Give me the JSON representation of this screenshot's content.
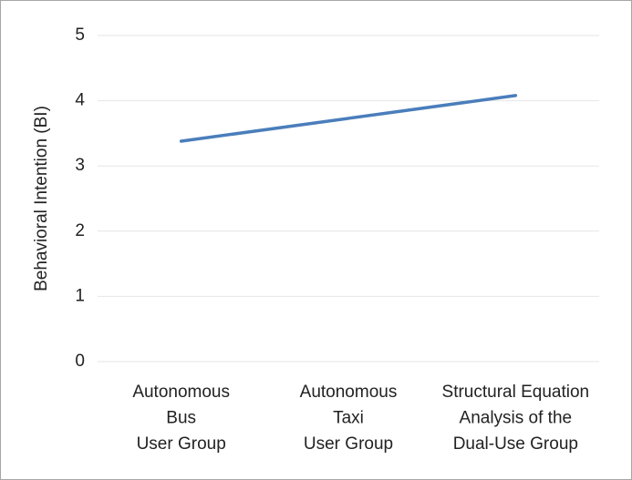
{
  "chart_data": {
    "type": "line",
    "y_label": "Behavioral Intention (BI)",
    "categories": [
      [
        "Autonomous",
        "Bus",
        "User Group"
      ],
      [
        "Autonomous",
        "Taxi",
        "User Group"
      ],
      [
        "Structural Equation",
        "Analysis of the",
        "Dual-Use Group"
      ]
    ],
    "values": [
      3.38,
      3.73,
      4.08
    ],
    "color": "#4a7ebb",
    "ylim": [
      0,
      5
    ],
    "yticks": [
      0,
      1,
      2,
      3,
      4,
      5
    ],
    "grid": true
  }
}
